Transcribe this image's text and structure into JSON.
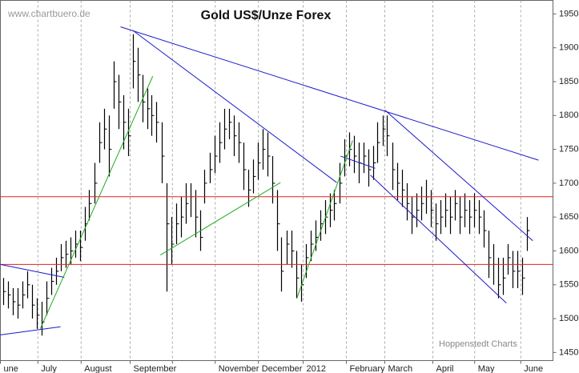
{
  "chart_data": {
    "type": "hlc",
    "title": "Gold US$/Unze Forex",
    "source": "www.chartbuero.de",
    "credit": "Hoppenstedt Charts",
    "bar_color": "#000000",
    "close": [
      1540,
      1535,
      1525,
      1520,
      1535,
      1550,
      1520,
      1505,
      1495,
      1530,
      1555,
      1570,
      1590,
      1595,
      1600,
      1610,
      1605,
      1640,
      1670,
      1700,
      1760,
      1780,
      1750,
      1850,
      1820,
      1790,
      1770,
      1880,
      1860,
      1820,
      1810,
      1800,
      1790,
      1740,
      1640,
      1610,
      1640,
      1650,
      1670,
      1680,
      1650,
      1620,
      1700,
      1720,
      1740,
      1760,
      1780,
      1790,
      1770,
      1760,
      1720,
      1690,
      1710,
      1730,
      1750,
      1740,
      1700,
      1640,
      1570,
      1610,
      1600,
      1560,
      1550,
      1590,
      1610,
      1620,
      1640,
      1650,
      1660,
      1670,
      1700,
      1740,
      1750,
      1740,
      1730,
      1740,
      1720,
      1730,
      1760,
      1780,
      1770,
      1720,
      1700,
      1690,
      1670,
      1650,
      1660,
      1670,
      1680,
      1660,
      1640,
      1650,
      1660,
      1650,
      1670,
      1650,
      1660,
      1650,
      1660,
      1650,
      1630,
      1590,
      1580,
      1550,
      1560,
      1590,
      1570,
      1570,
      1560,
      1630
    ],
    "high": [
      1560,
      1555,
      1545,
      1545,
      1555,
      1570,
      1550,
      1530,
      1525,
      1555,
      1575,
      1590,
      1610,
      1615,
      1620,
      1630,
      1630,
      1665,
      1690,
      1730,
      1790,
      1810,
      1800,
      1880,
      1860,
      1830,
      1810,
      1920,
      1900,
      1860,
      1840,
      1830,
      1820,
      1790,
      1700,
      1650,
      1670,
      1680,
      1700,
      1700,
      1690,
      1660,
      1720,
      1745,
      1770,
      1790,
      1810,
      1810,
      1800,
      1790,
      1760,
      1720,
      1735,
      1760,
      1780,
      1775,
      1740,
      1690,
      1620,
      1630,
      1630,
      1600,
      1580,
      1610,
      1630,
      1645,
      1660,
      1675,
      1685,
      1690,
      1730,
      1765,
      1775,
      1770,
      1760,
      1760,
      1750,
      1755,
      1790,
      1800,
      1800,
      1760,
      1730,
      1720,
      1700,
      1680,
      1685,
      1695,
      1705,
      1690,
      1670,
      1675,
      1685,
      1680,
      1690,
      1680,
      1685,
      1675,
      1685,
      1675,
      1660,
      1630,
      1610,
      1590,
      1590,
      1610,
      1600,
      1600,
      1590,
      1650
    ],
    "low": [
      1520,
      1515,
      1505,
      1500,
      1515,
      1530,
      1500,
      1485,
      1475,
      1505,
      1535,
      1550,
      1570,
      1575,
      1580,
      1590,
      1585,
      1615,
      1645,
      1670,
      1730,
      1750,
      1710,
      1810,
      1780,
      1750,
      1740,
      1840,
      1820,
      1790,
      1780,
      1770,
      1760,
      1700,
      1540,
      1580,
      1610,
      1620,
      1640,
      1650,
      1620,
      1600,
      1670,
      1700,
      1715,
      1730,
      1750,
      1765,
      1740,
      1730,
      1690,
      1665,
      1685,
      1705,
      1720,
      1710,
      1670,
      1600,
      1540,
      1580,
      1575,
      1530,
      1525,
      1560,
      1585,
      1600,
      1615,
      1625,
      1635,
      1645,
      1670,
      1710,
      1725,
      1715,
      1700,
      1715,
      1695,
      1705,
      1730,
      1755,
      1740,
      1690,
      1675,
      1665,
      1645,
      1625,
      1635,
      1645,
      1655,
      1635,
      1615,
      1625,
      1635,
      1625,
      1645,
      1625,
      1635,
      1625,
      1635,
      1625,
      1605,
      1560,
      1550,
      1530,
      1535,
      1565,
      1545,
      1545,
      1535,
      1600
    ],
    "xlim": [
      0,
      115
    ],
    "xticks": [
      {
        "value": 0,
        "label": "une"
      },
      {
        "value": 7.8,
        "label": "July"
      },
      {
        "value": 16.8,
        "label": "August"
      },
      {
        "value": 27,
        "label": "September"
      },
      {
        "value": 35.8,
        "label": null
      },
      {
        "value": 44.7,
        "label": "November"
      },
      {
        "value": 53.7,
        "label": "December"
      },
      {
        "value": 63,
        "label": "2012"
      },
      {
        "value": 72,
        "label": "February"
      },
      {
        "value": 80,
        "label": "March"
      },
      {
        "value": 90,
        "label": "April"
      },
      {
        "value": 98.7,
        "label": "May"
      },
      {
        "value": 108.3,
        "label": "June"
      }
    ],
    "ylim": [
      1438,
      1970
    ],
    "yticks": [
      1450,
      1500,
      1550,
      1600,
      1650,
      1700,
      1750,
      1800,
      1850,
      1900,
      1950
    ],
    "hlines": [
      {
        "value": 1680,
        "color": "#e02020"
      },
      {
        "value": 1580,
        "color": "#e02020"
      }
    ],
    "trend_lines": [
      {
        "color": "#1a1acc",
        "x": [
          25,
          112
        ],
        "y": [
          1931,
          1734
        ]
      },
      {
        "color": "#1a1acc",
        "x": [
          27.5,
          70
        ],
        "y": [
          1926,
          1701
        ]
      },
      {
        "color": "#1a1acc",
        "x": [
          80,
          110.8
        ],
        "y": [
          1808,
          1615
        ]
      },
      {
        "color": "#1a1acc",
        "x": [
          77,
          105.3
        ],
        "y": [
          1712,
          1523
        ]
      },
      {
        "color": "#1a1acc",
        "x": [
          0,
          13.3
        ],
        "y": [
          1580,
          1561
        ]
      },
      {
        "color": "#1a1acc",
        "x": [
          0,
          12.5
        ],
        "y": [
          1476,
          1488
        ]
      },
      {
        "color": "#1a1acc",
        "x": [
          70.8,
          78
        ],
        "y": [
          1740,
          1722
        ]
      },
      {
        "color": "#22aa22",
        "x": [
          8.3,
          31.7
        ],
        "y": [
          1485,
          1858
        ]
      },
      {
        "color": "#22aa22",
        "x": [
          33.3,
          58.3
        ],
        "y": [
          1594,
          1701
        ]
      },
      {
        "color": "#22aa22",
        "x": [
          61.7,
          73.3
        ],
        "y": [
          1530,
          1763
        ]
      }
    ]
  }
}
